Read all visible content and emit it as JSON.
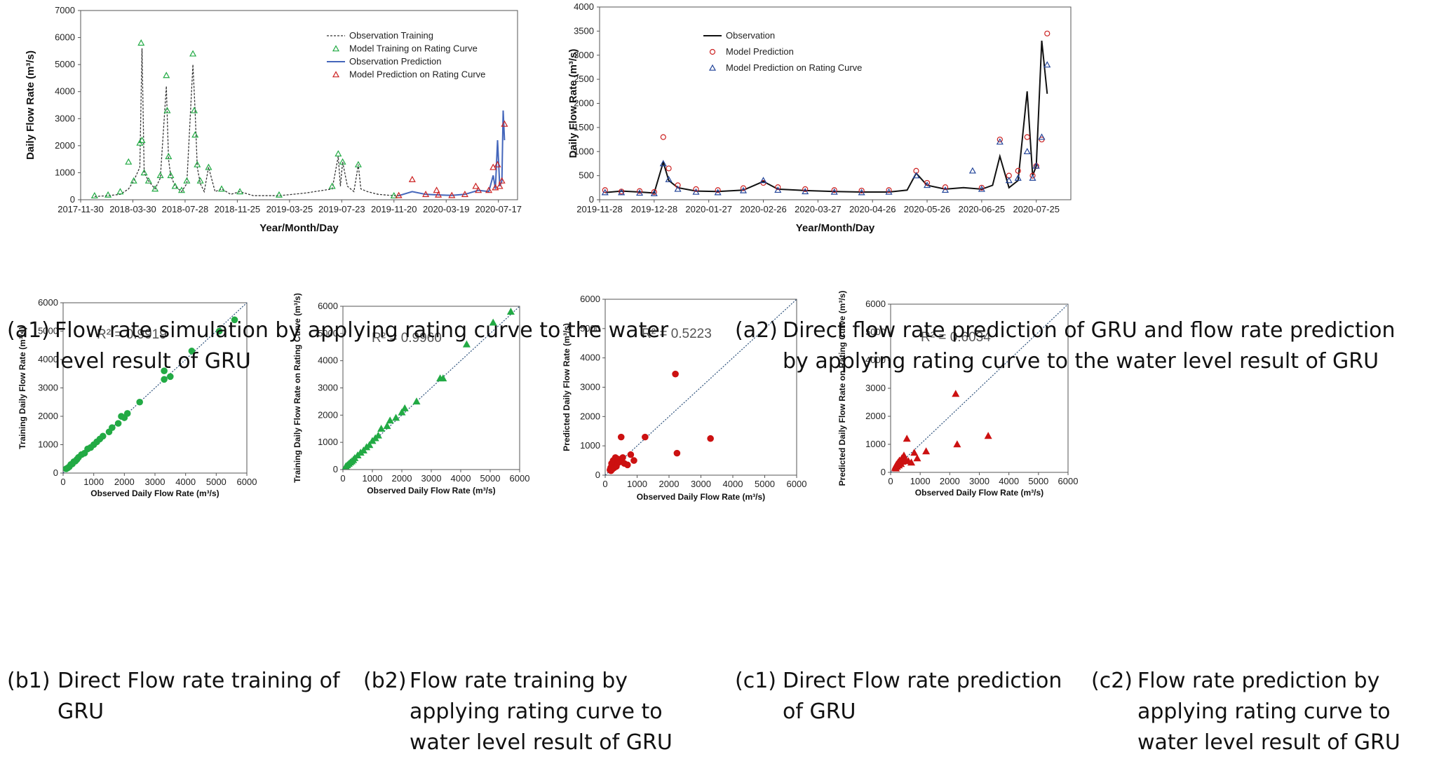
{
  "captions": {
    "a1": {
      "tag": "(a1)",
      "text": "Flow rate simulation by applying rating curve to the water level result of GRU"
    },
    "a2": {
      "tag": "(a2)",
      "text": "Direct flow rate prediction of GRU and flow rate prediction by applying rating curve to the water level result of GRU"
    },
    "b1": {
      "tag": "(b1)",
      "text": "Direct Flow rate training of GRU"
    },
    "b2": {
      "tag": "(b2)",
      "text": "Flow rate training by applying rating curve to water level result of GRU"
    },
    "c1": {
      "tag": "(c1)",
      "text": "Direct Flow rate prediction of GRU"
    },
    "c2": {
      "tag": "(c2)",
      "text": "Flow rate prediction by applying rating curve to water level result of GRU"
    }
  },
  "chart_data": [
    {
      "id": "a1",
      "type": "line",
      "xlabel": "Year/Month/Day",
      "ylabel": "Daily Flow Rate (m³/s)",
      "ylim": [
        0,
        7000
      ],
      "yticks": [
        0,
        1000,
        2000,
        3000,
        4000,
        5000,
        6000,
        7000
      ],
      "xlim": [
        "2017-11-30",
        "2020-08-30"
      ],
      "xticks": [
        "2017-11-30",
        "2018-03-30",
        "2018-07-28",
        "2018-11-25",
        "2019-03-25",
        "2019-07-23",
        "2019-11-20",
        "2020-03-19",
        "2020-07-17"
      ],
      "legend": {
        "position": "top-right",
        "entries": [
          "Observation Training",
          "Model Training on Rating Curve",
          "Observation Prediction",
          "Model Prediction on Rating Curve"
        ]
      },
      "series": [
        {
          "name": "Observation Training",
          "style": "dashed-line",
          "color": "#333333",
          "x": [
            "2018-01-01",
            "2018-02-01",
            "2018-03-01",
            "2018-03-20",
            "2018-04-01",
            "2018-04-15",
            "2018-04-20",
            "2018-04-25",
            "2018-05-05",
            "2018-05-20",
            "2018-06-01",
            "2018-06-15",
            "2018-06-20",
            "2018-06-25",
            "2018-07-05",
            "2018-07-20",
            "2018-08-01",
            "2018-08-15",
            "2018-08-20",
            "2018-08-25",
            "2018-09-01",
            "2018-09-10",
            "2018-09-20",
            "2018-10-05",
            "2018-10-20",
            "2018-11-10",
            "2018-12-01",
            "2019-01-01",
            "2019-03-01",
            "2019-05-01",
            "2019-07-01",
            "2019-07-15",
            "2019-07-20",
            "2019-07-25",
            "2019-08-05",
            "2019-08-20",
            "2019-08-30",
            "2019-09-05",
            "2019-09-20",
            "2019-10-15",
            "2019-11-20",
            "2019-12-01"
          ],
          "y": [
            120,
            150,
            200,
            400,
            700,
            1200,
            5600,
            1000,
            700,
            400,
            800,
            4200,
            1500,
            900,
            500,
            300,
            600,
            5000,
            3300,
            1200,
            600,
            300,
            1200,
            300,
            400,
            200,
            300,
            150,
            150,
            250,
            400,
            1600,
            500,
            1400,
            500,
            300,
            1300,
            400,
            300,
            200,
            150,
            150
          ]
        },
        {
          "name": "Model Training on Rating Curve",
          "style": "triangle-markers",
          "color": "#22aa44",
          "x": [
            "2018-01-01",
            "2018-02-01",
            "2018-03-01",
            "2018-03-20",
            "2018-04-01",
            "2018-04-15",
            "2018-04-18",
            "2018-04-20",
            "2018-04-25",
            "2018-05-05",
            "2018-05-20",
            "2018-06-01",
            "2018-06-15",
            "2018-06-17",
            "2018-06-20",
            "2018-06-25",
            "2018-07-05",
            "2018-07-20",
            "2018-08-01",
            "2018-08-15",
            "2018-08-18",
            "2018-08-20",
            "2018-08-25",
            "2018-09-01",
            "2018-09-20",
            "2018-10-20",
            "2018-12-01",
            "2019-03-01",
            "2019-07-01",
            "2019-07-15",
            "2019-07-25",
            "2019-08-30",
            "2019-11-20"
          ],
          "y": [
            150,
            180,
            300,
            1400,
            700,
            2100,
            5800,
            2200,
            1000,
            700,
            400,
            900,
            4600,
            3300,
            1600,
            900,
            500,
            350,
            700,
            5400,
            3300,
            2400,
            1300,
            700,
            1200,
            400,
            300,
            180,
            500,
            1700,
            1400,
            1300,
            150
          ]
        },
        {
          "name": "Observation Prediction",
          "style": "line",
          "color": "#4466bb",
          "x": [
            "2019-12-01",
            "2020-01-01",
            "2020-02-01",
            "2020-03-01",
            "2020-04-01",
            "2020-05-01",
            "2020-06-01",
            "2020-06-25",
            "2020-07-05",
            "2020-07-10",
            "2020-07-15",
            "2020-07-20",
            "2020-07-25",
            "2020-07-28",
            "2020-07-31"
          ],
          "y": [
            150,
            300,
            200,
            180,
            160,
            200,
            350,
            300,
            900,
            400,
            2200,
            500,
            700,
            3300,
            2200
          ]
        },
        {
          "name": "Model Prediction on Rating Curve",
          "style": "triangle-markers",
          "color": "#cc2222",
          "x": [
            "2019-12-01",
            "2020-01-01",
            "2020-02-01",
            "2020-02-26",
            "2020-03-01",
            "2020-04-01",
            "2020-05-01",
            "2020-05-26",
            "2020-06-01",
            "2020-06-25",
            "2020-07-05",
            "2020-07-10",
            "2020-07-15",
            "2020-07-20",
            "2020-07-25",
            "2020-07-31"
          ],
          "y": [
            160,
            750,
            200,
            350,
            180,
            160,
            200,
            500,
            350,
            350,
            1200,
            450,
            1300,
            500,
            700,
            2800
          ]
        }
      ]
    },
    {
      "id": "a2",
      "type": "line",
      "xlabel": "Year/Month/Day",
      "ylabel": "Daily Flow Rate (m³/s)",
      "ylim": [
        0,
        4000
      ],
      "yticks": [
        0,
        500,
        1000,
        1500,
        2000,
        2500,
        3000,
        3500,
        4000
      ],
      "xlim": [
        "2019-11-28",
        "2020-08-13"
      ],
      "xticks": [
        "2019-11-28",
        "2019-12-28",
        "2020-01-27",
        "2020-02-26",
        "2020-03-27",
        "2020-04-26",
        "2020-05-26",
        "2020-06-25",
        "2020-07-25"
      ],
      "legend": {
        "position": "top-left",
        "entries": [
          "Observation",
          "Model Prediction",
          "Model Prediction on Rating Curve"
        ]
      },
      "series": [
        {
          "name": "Observation",
          "style": "line",
          "color": "#111111",
          "x": [
            "2019-12-01",
            "2019-12-10",
            "2019-12-20",
            "2019-12-28",
            "2020-01-02",
            "2020-01-05",
            "2020-01-10",
            "2020-01-20",
            "2020-02-01",
            "2020-02-15",
            "2020-02-26",
            "2020-03-05",
            "2020-03-20",
            "2020-04-05",
            "2020-04-20",
            "2020-05-05",
            "2020-05-15",
            "2020-05-20",
            "2020-05-26",
            "2020-06-05",
            "2020-06-15",
            "2020-06-25",
            "2020-07-01",
            "2020-07-05",
            "2020-07-10",
            "2020-07-15",
            "2020-07-20",
            "2020-07-23",
            "2020-07-25",
            "2020-07-28",
            "2020-07-31"
          ],
          "y": [
            150,
            180,
            160,
            140,
            780,
            400,
            250,
            180,
            170,
            200,
            380,
            220,
            190,
            170,
            160,
            160,
            200,
            550,
            300,
            220,
            250,
            220,
            300,
            900,
            250,
            400,
            2250,
            500,
            700,
            3300,
            2200
          ]
        },
        {
          "name": "Model Prediction",
          "style": "circle-markers",
          "color": "#cc2222",
          "x": [
            "2019-12-01",
            "2019-12-10",
            "2019-12-20",
            "2019-12-28",
            "2020-01-02",
            "2020-01-05",
            "2020-01-10",
            "2020-01-20",
            "2020-02-01",
            "2020-02-15",
            "2020-02-26",
            "2020-03-05",
            "2020-03-20",
            "2020-04-05",
            "2020-04-20",
            "2020-05-05",
            "2020-05-20",
            "2020-05-26",
            "2020-06-05",
            "2020-06-25",
            "2020-07-05",
            "2020-07-10",
            "2020-07-15",
            "2020-07-20",
            "2020-07-23",
            "2020-07-25",
            "2020-07-28",
            "2020-07-31"
          ],
          "y": [
            200,
            170,
            180,
            160,
            1300,
            650,
            300,
            220,
            200,
            240,
            350,
            260,
            220,
            200,
            190,
            200,
            600,
            350,
            260,
            250,
            1250,
            500,
            600,
            1300,
            500,
            700,
            1250,
            3450
          ]
        },
        {
          "name": "Model Prediction on Rating Curve",
          "style": "triangle-markers",
          "color": "#224499",
          "x": [
            "2019-12-01",
            "2019-12-10",
            "2019-12-20",
            "2019-12-28",
            "2020-01-02",
            "2020-01-05",
            "2020-01-10",
            "2020-01-20",
            "2020-02-01",
            "2020-02-15",
            "2020-02-26",
            "2020-03-05",
            "2020-03-20",
            "2020-04-05",
            "2020-04-20",
            "2020-05-05",
            "2020-05-20",
            "2020-05-26",
            "2020-06-05",
            "2020-06-20",
            "2020-06-25",
            "2020-07-05",
            "2020-07-10",
            "2020-07-15",
            "2020-07-20",
            "2020-07-23",
            "2020-07-25",
            "2020-07-28",
            "2020-07-31"
          ],
          "y": [
            150,
            150,
            140,
            130,
            750,
            420,
            220,
            160,
            150,
            190,
            400,
            200,
            170,
            160,
            150,
            160,
            500,
            300,
            200,
            600,
            220,
            1200,
            400,
            450,
            1000,
            450,
            700,
            1300,
            2800
          ]
        }
      ]
    },
    {
      "id": "b1",
      "type": "scatter",
      "xlabel": "Observed Daily Flow Rate (m³/s)",
      "ylabel": "Training Daily Flow Rate (m³/s)",
      "xlim": [
        0,
        6000
      ],
      "ylim": [
        0,
        6000
      ],
      "xticks": [
        0,
        1000,
        2000,
        3000,
        4000,
        5000,
        6000
      ],
      "yticks": [
        0,
        1000,
        2000,
        3000,
        4000,
        5000,
        6000
      ],
      "annotation": "R² = 0.9919",
      "marker": "circle",
      "color": "#22aa44",
      "x": [
        100,
        150,
        200,
        250,
        300,
        350,
        400,
        450,
        500,
        600,
        700,
        800,
        900,
        1000,
        1100,
        1200,
        1300,
        1500,
        1600,
        1800,
        1900,
        2000,
        2100,
        2500,
        3300,
        3300,
        3500,
        4200,
        5100,
        5600
      ],
      "y": [
        150,
        180,
        220,
        300,
        320,
        400,
        420,
        480,
        550,
        650,
        700,
        850,
        900,
        1000,
        1100,
        1200,
        1300,
        1450,
        1600,
        1750,
        2000,
        1950,
        2100,
        2500,
        3600,
        3300,
        3400,
        4300,
        5000,
        5400
      ]
    },
    {
      "id": "b2",
      "type": "scatter",
      "xlabel": "Observed Daily Flow Rate (m³/s)",
      "ylabel": "Training Daily Flow Rate on Rating Curve (m³/s)",
      "xlim": [
        0,
        6000
      ],
      "ylim": [
        0,
        6000
      ],
      "xticks": [
        0,
        1000,
        2000,
        3000,
        4000,
        5000,
        6000
      ],
      "yticks": [
        0,
        1000,
        2000,
        3000,
        4000,
        5000,
        6000
      ],
      "annotation": "R² = 0.9960",
      "marker": "triangle",
      "color": "#22aa44",
      "x": [
        100,
        150,
        200,
        250,
        300,
        350,
        400,
        500,
        600,
        700,
        800,
        900,
        1000,
        1100,
        1200,
        1300,
        1500,
        1600,
        1800,
        2000,
        2100,
        2500,
        3300,
        3400,
        4200,
        5100,
        5700
      ],
      "y": [
        120,
        160,
        210,
        260,
        300,
        350,
        420,
        520,
        620,
        700,
        820,
        900,
        1050,
        1150,
        1250,
        1500,
        1600,
        1800,
        1900,
        2100,
        2250,
        2500,
        3350,
        3350,
        4600,
        5400,
        5800
      ]
    },
    {
      "id": "c1",
      "type": "scatter",
      "xlabel": "Observed Daily Flow Rate (m³/s)",
      "ylabel": "Predicted Daily Flow Rate (m³/s)",
      "xlim": [
        0,
        6000
      ],
      "ylim": [
        0,
        6000
      ],
      "xticks": [
        0,
        1000,
        2000,
        3000,
        4000,
        5000,
        6000
      ],
      "yticks": [
        0,
        1000,
        2000,
        3000,
        4000,
        5000,
        6000
      ],
      "annotation": "R² = 0.5223",
      "marker": "circle",
      "color": "#cc1111",
      "x": [
        150,
        170,
        180,
        200,
        200,
        220,
        250,
        250,
        280,
        300,
        320,
        350,
        380,
        400,
        450,
        500,
        550,
        600,
        700,
        800,
        900,
        1250,
        2200,
        2250,
        3300
      ],
      "y": [
        180,
        250,
        150,
        300,
        400,
        200,
        350,
        500,
        250,
        450,
        600,
        300,
        400,
        550,
        450,
        1300,
        600,
        400,
        350,
        700,
        500,
        1300,
        3450,
        750,
        1250
      ]
    },
    {
      "id": "c2",
      "type": "scatter",
      "xlabel": "Observed Daily Flow Rate (m³/s)",
      "ylabel": "Predicted Daily Flow Rate on Rating Curve (m³/s)",
      "xlim": [
        0,
        6000
      ],
      "ylim": [
        0,
        6000
      ],
      "xticks": [
        0,
        1000,
        2000,
        3000,
        4000,
        5000,
        6000
      ],
      "yticks": [
        0,
        1000,
        2000,
        3000,
        4000,
        5000,
        6000
      ],
      "annotation": "R² = 0.6034",
      "marker": "triangle",
      "color": "#cc1111",
      "x": [
        150,
        170,
        180,
        200,
        220,
        250,
        280,
        300,
        350,
        380,
        400,
        450,
        500,
        550,
        600,
        700,
        800,
        900,
        1200,
        2200,
        2250,
        3300
      ],
      "y": [
        160,
        220,
        140,
        280,
        200,
        350,
        250,
        420,
        300,
        500,
        380,
        600,
        450,
        1200,
        400,
        350,
        700,
        500,
        750,
        2800,
        1000,
        1300
      ]
    }
  ]
}
